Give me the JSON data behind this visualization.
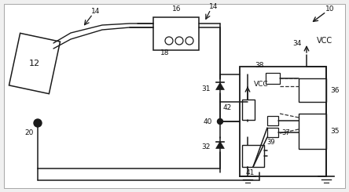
{
  "bg_color": "#f0f0f0",
  "line_color": "#1a1a1a",
  "dashed_color": "#333333",
  "label_color": "#111111",
  "fig_w": 4.44,
  "fig_h": 2.45,
  "dpi": 100
}
